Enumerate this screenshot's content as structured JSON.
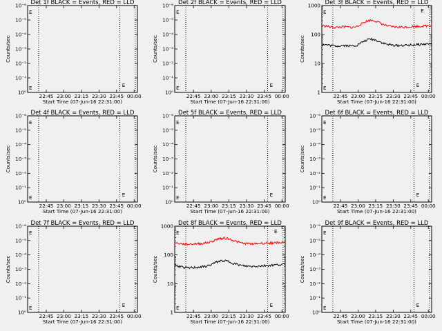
{
  "chart_data": [
    {
      "type": "line",
      "title": "Det 1f BLACK = Events, RED = LLD",
      "xlabel": "Start Time (07-Jun-16 22:31:00)",
      "ylabel": "Counts/sec",
      "xticks": [
        "22:45",
        "23:00",
        "23:15",
        "23:30",
        "23:45",
        "00:00"
      ],
      "yticks": [
        "10⁰",
        "10⁻¹",
        "10⁻²",
        "10⁻³",
        "10⁻⁴",
        "10⁻⁵",
        "10⁻⁶"
      ],
      "yscale": "log",
      "series": [],
      "marker_label": "E",
      "grid": false
    },
    {
      "type": "line",
      "title": "Det 2f BLACK = Events, RED = LLD",
      "xlabel": "Start Time (07-Jun-16 22:31:00)",
      "ylabel": "Counts/sec",
      "xticks": [
        "22:45",
        "23:00",
        "23:15",
        "23:30",
        "23:45",
        "00:00"
      ],
      "yticks": [
        "10⁰",
        "10⁻¹",
        "10⁻²",
        "10⁻³",
        "10⁻⁴",
        "10⁻⁵",
        "10⁻⁶"
      ],
      "yscale": "log",
      "series": [],
      "marker_label": "E",
      "grid": false
    },
    {
      "type": "line",
      "title": "Det 3f BLACK = Events, RED = LLD",
      "xlabel": "Start Time (07-Jun-16 22:31:00)",
      "ylabel": "Counts/sec",
      "xticks": [
        "22:45",
        "23:00",
        "23:15",
        "23:30",
        "23:45",
        "00:00"
      ],
      "yticks": [
        "1",
        "10",
        "100",
        "1000"
      ],
      "yscale": "log",
      "ylim": [
        1,
        1000
      ],
      "marker_label": "E",
      "grid": false,
      "series": [
        {
          "color": "#ff0000",
          "x": [
            0,
            4,
            8,
            12,
            16,
            20,
            24,
            28,
            32,
            36,
            40,
            44,
            48,
            52,
            56,
            60,
            64,
            68,
            72,
            76,
            80,
            84,
            88,
            92,
            96,
            100
          ],
          "values": [
            200,
            195,
            180,
            175,
            180,
            185,
            180,
            175,
            190,
            230,
            280,
            310,
            300,
            260,
            220,
            195,
            185,
            180,
            180,
            180,
            185,
            190,
            190,
            195,
            200,
            205
          ]
        },
        {
          "color": "#000000",
          "x": [
            0,
            4,
            8,
            12,
            16,
            20,
            24,
            28,
            32,
            36,
            40,
            44,
            48,
            52,
            56,
            60,
            64,
            68,
            72,
            76,
            80,
            84,
            88,
            92,
            96,
            100
          ],
          "values": [
            45,
            44,
            42,
            40,
            41,
            42,
            41,
            40,
            43,
            52,
            62,
            70,
            66,
            58,
            50,
            45,
            43,
            42,
            42,
            42,
            43,
            44,
            45,
            46,
            47,
            48
          ]
        }
      ]
    },
    {
      "type": "line",
      "title": "Det 4f BLACK = Events, RED = LLD",
      "xlabel": "Start Time (07-Jun-16 22:31:00)",
      "ylabel": "Counts/sec",
      "xticks": [
        "22:45",
        "23:00",
        "23:15",
        "23:30",
        "23:45",
        "00:00"
      ],
      "yticks": [
        "10⁰",
        "10⁻¹",
        "10⁻²",
        "10⁻³",
        "10⁻⁴",
        "10⁻⁵",
        "10⁻⁶"
      ],
      "yscale": "log",
      "series": [],
      "marker_label": "E",
      "grid": false
    },
    {
      "type": "line",
      "title": "Det 5f BLACK = Events, RED = LLD",
      "xlabel": "Start Time (07-Jun-16 22:31:00)",
      "ylabel": "Counts/sec",
      "xticks": [
        "22:45",
        "23:00",
        "23:15",
        "23:30",
        "23:45",
        "00:00"
      ],
      "yticks": [
        "10⁰",
        "10⁻¹",
        "10⁻²",
        "10⁻³",
        "10⁻⁴",
        "10⁻⁵",
        "10⁻⁶"
      ],
      "yscale": "log",
      "series": [],
      "marker_label": "E",
      "grid": false
    },
    {
      "type": "line",
      "title": "Det 6f BLACK = Events, RED = LLD",
      "xlabel": "Start Time (07-Jun-16 22:31:00)",
      "ylabel": "Counts/sec",
      "xticks": [
        "22:45",
        "23:00",
        "23:15",
        "23:30",
        "23:45",
        "00:00"
      ],
      "yticks": [
        "10⁰",
        "10⁻¹",
        "10⁻²",
        "10⁻³",
        "10⁻⁴",
        "10⁻⁵",
        "10⁻⁶"
      ],
      "yscale": "log",
      "series": [],
      "marker_label": "E",
      "grid": false
    },
    {
      "type": "line",
      "title": "Det 7f BLACK = Events, RED = LLD",
      "xlabel": "Start Time (07-Jun-16 22:31:00)",
      "ylabel": "Counts/sec",
      "xticks": [
        "22:45",
        "23:00",
        "23:15",
        "23:30",
        "23:45",
        "00:00"
      ],
      "yticks": [
        "10⁰",
        "10⁻¹",
        "10⁻²",
        "10⁻³",
        "10⁻⁴",
        "10⁻⁵",
        "10⁻⁶"
      ],
      "yscale": "log",
      "series": [],
      "marker_label": "E",
      "grid": false
    },
    {
      "type": "line",
      "title": "Det 8f BLACK = Events, RED = LLD",
      "xlabel": "Start Time (07-Jun-16 22:31:00)",
      "ylabel": "Counts/sec",
      "xticks": [
        "22:45",
        "23:00",
        "23:15",
        "23:30",
        "23:45",
        "00:00"
      ],
      "yticks": [
        "1",
        "10",
        "100",
        "1000"
      ],
      "yscale": "log",
      "ylim": [
        1,
        1000
      ],
      "marker_label": "E",
      "grid": false,
      "series": [
        {
          "color": "#ff0000",
          "x": [
            0,
            4,
            8,
            12,
            16,
            20,
            24,
            28,
            32,
            36,
            40,
            44,
            48,
            52,
            56,
            60,
            64,
            68,
            72,
            76,
            80,
            84,
            88,
            92,
            96,
            100
          ],
          "values": [
            260,
            250,
            240,
            235,
            240,
            245,
            250,
            260,
            280,
            320,
            370,
            390,
            370,
            330,
            290,
            260,
            250,
            245,
            245,
            250,
            255,
            260,
            260,
            265,
            270,
            275
          ]
        },
        {
          "color": "#000000",
          "x": [
            0,
            4,
            8,
            12,
            16,
            20,
            24,
            28,
            32,
            36,
            40,
            44,
            48,
            52,
            56,
            60,
            64,
            68,
            72,
            76,
            80,
            84,
            88,
            92,
            96,
            100
          ],
          "values": [
            45,
            40,
            37,
            35,
            36,
            37,
            38,
            40,
            44,
            52,
            60,
            64,
            60,
            53,
            47,
            43,
            41,
            40,
            40,
            41,
            42,
            43,
            44,
            45,
            46,
            47
          ]
        }
      ]
    },
    {
      "type": "line",
      "title": "Det 9f BLACK = Events, RED = LLD",
      "xlabel": "Start Time (07-Jun-16 22:31:00)",
      "ylabel": "Counts/sec",
      "xticks": [
        "22:45",
        "23:00",
        "23:15",
        "23:30",
        "23:45",
        "00:00"
      ],
      "yticks": [
        "10⁰",
        "10⁻¹",
        "10⁻²",
        "10⁻³",
        "10⁻⁴",
        "10⁻⁵",
        "10⁻⁶"
      ],
      "yscale": "log",
      "series": [],
      "marker_label": "E",
      "grid": false
    }
  ]
}
